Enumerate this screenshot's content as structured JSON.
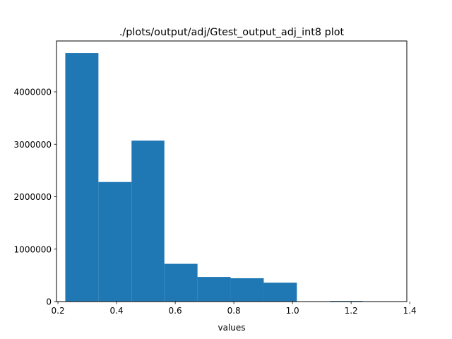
{
  "chart_data": {
    "type": "bar",
    "title": "./plots/output/adj/Gtest_output_adj_int8 plot",
    "xlabel": "values",
    "ylabel": "",
    "xlim": [
      0.195,
      1.39
    ],
    "ylim": [
      0,
      4970000
    ],
    "bar_color": "#1f77b4",
    "grid": false,
    "legend": "none",
    "bins": [
      {
        "x0": 0.225,
        "x1": 0.338,
        "value": 4740000
      },
      {
        "x0": 0.338,
        "x1": 0.451,
        "value": 2280000
      },
      {
        "x0": 0.451,
        "x1": 0.563,
        "value": 3070000
      },
      {
        "x0": 0.563,
        "x1": 0.676,
        "value": 720000
      },
      {
        "x0": 0.676,
        "x1": 0.789,
        "value": 470000
      },
      {
        "x0": 0.789,
        "x1": 0.902,
        "value": 445000
      },
      {
        "x0": 0.902,
        "x1": 1.015,
        "value": 360000
      },
      {
        "x0": 1.015,
        "x1": 1.128,
        "value": 0
      },
      {
        "x0": 1.128,
        "x1": 1.24,
        "value": 12000
      },
      {
        "x0": 1.24,
        "x1": 1.353,
        "value": 2000
      }
    ],
    "xticks": [
      {
        "value": 0.2,
        "label": "0.2"
      },
      {
        "value": 0.4,
        "label": "0.4"
      },
      {
        "value": 0.6,
        "label": "0.6"
      },
      {
        "value": 0.8,
        "label": "0.8"
      },
      {
        "value": 1.0,
        "label": "1.0"
      },
      {
        "value": 1.2,
        "label": "1.2"
      },
      {
        "value": 1.4,
        "label": "1.4"
      }
    ],
    "yticks": [
      {
        "value": 0,
        "label": "0"
      },
      {
        "value": 1000000,
        "label": "1000000"
      },
      {
        "value": 2000000,
        "label": "2000000"
      },
      {
        "value": 3000000,
        "label": "3000000"
      },
      {
        "value": 4000000,
        "label": "4000000"
      }
    ]
  }
}
